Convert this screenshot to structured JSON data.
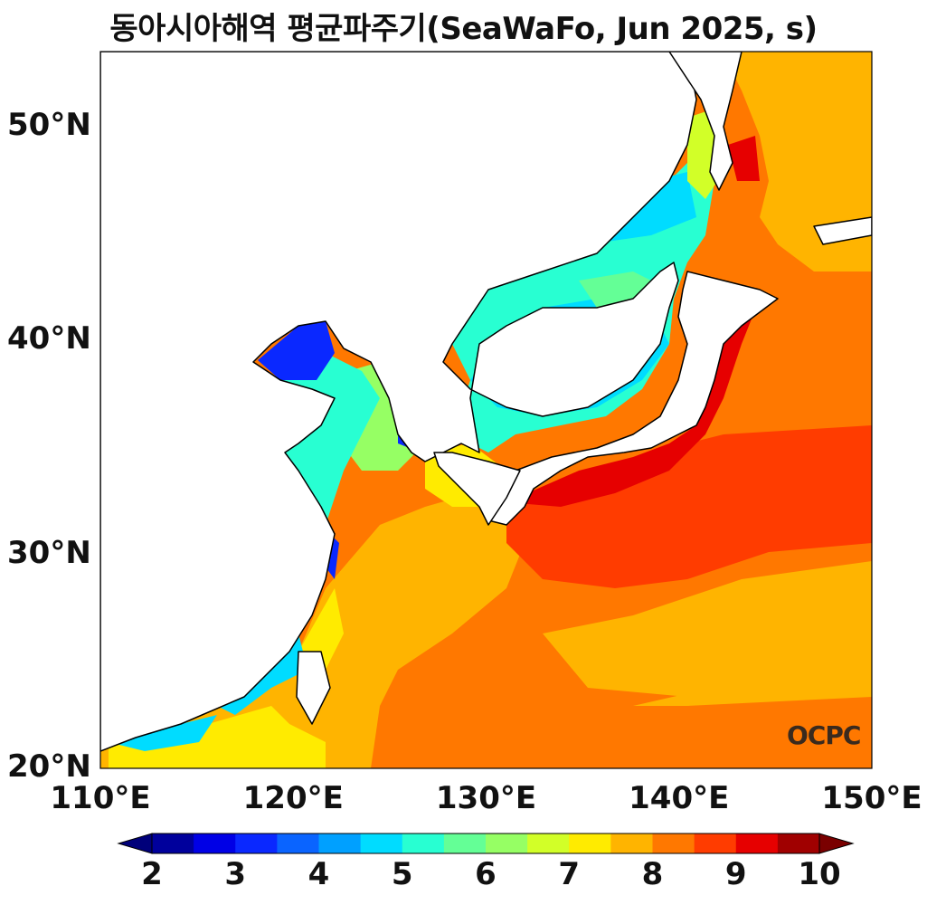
{
  "title": "동아시아해역 평균파주기(SeaWaFo, Jun 2025, s)",
  "map": {
    "lon_range": [
      110,
      150
    ],
    "lat_range": [
      20,
      53.5
    ],
    "lon_ticks": [
      {
        "value": 110,
        "label": "110°E"
      },
      {
        "value": 120,
        "label": "120°E"
      },
      {
        "value": 130,
        "label": "130°E"
      },
      {
        "value": 140,
        "label": "140°E"
      },
      {
        "value": 150,
        "label": "150°E"
      }
    ],
    "lat_ticks": [
      {
        "value": 20,
        "label": "20°N"
      },
      {
        "value": 30,
        "label": "30°N"
      },
      {
        "value": 40,
        "label": "40°N"
      },
      {
        "value": 50,
        "label": "50°N"
      }
    ],
    "variable": "mean wave period",
    "units": "s"
  },
  "colorbar": {
    "levels": [
      2,
      2.5,
      3,
      3.5,
      4,
      4.5,
      5,
      5.5,
      6,
      6.5,
      7,
      7.5,
      8,
      8.5,
      9,
      9.5,
      10
    ],
    "colors": [
      "#00009c",
      "#0000e6",
      "#0a28ff",
      "#0a64ff",
      "#00a0ff",
      "#00dcff",
      "#28ffd2",
      "#64ff96",
      "#96ff64",
      "#d2ff28",
      "#ffeb00",
      "#ffb400",
      "#ff7800",
      "#ff3c00",
      "#e60000",
      "#a00000"
    ],
    "under_color": "#00007a",
    "over_color": "#7a0000",
    "tick_labels": [
      "2",
      "3",
      "4",
      "5",
      "6",
      "7",
      "8",
      "9",
      "10"
    ]
  },
  "logo_text": "OCPC"
}
